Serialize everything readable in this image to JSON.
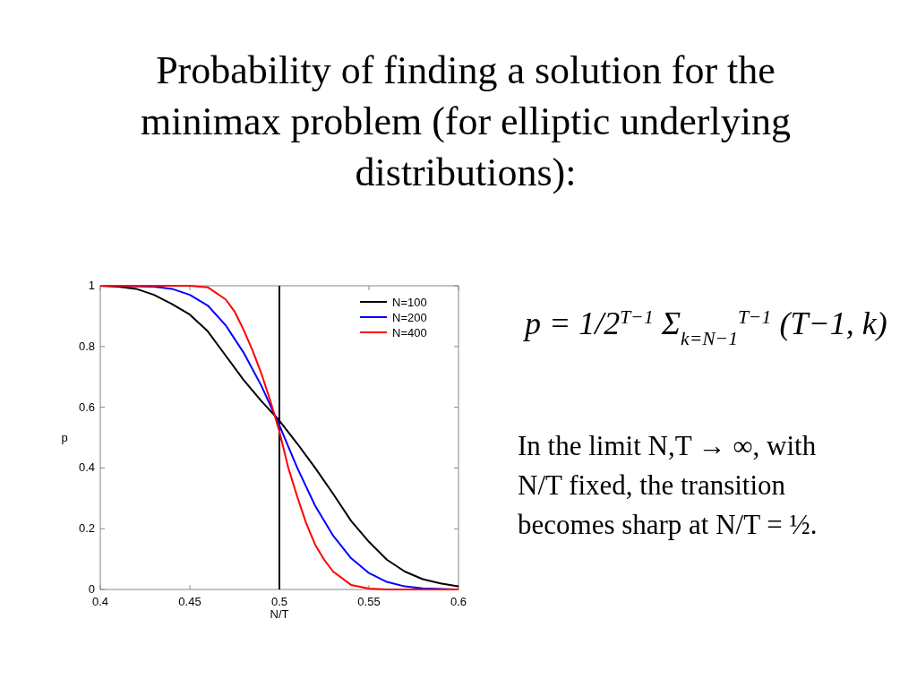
{
  "chart_data": {
    "type": "line",
    "title": "Probability of finding a solution for the minimax problem (for elliptic underlying distributions):",
    "xlabel": "N/T",
    "ylabel": "p",
    "series": [
      {
        "name": "N=100",
        "color": "#000000",
        "x": [
          0.4,
          0.41,
          0.42,
          0.43,
          0.44,
          0.45,
          0.46,
          0.47,
          0.48,
          0.49,
          0.5,
          0.51,
          0.52,
          0.53,
          0.54,
          0.55,
          0.56,
          0.57,
          0.58,
          0.59,
          0.6
        ],
        "values": [
          1.0,
          0.997,
          0.99,
          0.97,
          0.94,
          0.905,
          0.85,
          0.77,
          0.69,
          0.62,
          0.556,
          0.48,
          0.4,
          0.315,
          0.226,
          0.157,
          0.098,
          0.059,
          0.034,
          0.02,
          0.01
        ]
      },
      {
        "name": "N=200",
        "color": "#0000ff",
        "x": [
          0.4,
          0.43,
          0.44,
          0.45,
          0.46,
          0.47,
          0.48,
          0.49,
          0.5,
          0.51,
          0.52,
          0.53,
          0.54,
          0.55,
          0.56,
          0.57,
          0.58,
          0.6
        ],
        "values": [
          1.0,
          0.997,
          0.99,
          0.97,
          0.935,
          0.87,
          0.78,
          0.67,
          0.54,
          0.4,
          0.275,
          0.177,
          0.103,
          0.054,
          0.025,
          0.01,
          0.004,
          0.0
        ]
      },
      {
        "name": "N=400",
        "color": "#ff0000",
        "x": [
          0.4,
          0.45,
          0.46,
          0.47,
          0.475,
          0.48,
          0.485,
          0.49,
          0.495,
          0.5,
          0.505,
          0.51,
          0.515,
          0.52,
          0.525,
          0.53,
          0.54,
          0.55,
          0.56,
          0.6
        ],
        "values": [
          1.0,
          1.0,
          0.995,
          0.955,
          0.915,
          0.855,
          0.787,
          0.71,
          0.62,
          0.52,
          0.4,
          0.305,
          0.217,
          0.147,
          0.098,
          0.059,
          0.015,
          0.003,
          0.0,
          0.0
        ]
      }
    ],
    "xlim": [
      0.4,
      0.6
    ],
    "xticks": [
      0.4,
      0.45,
      0.5,
      0.55,
      0.6
    ],
    "ylim": [
      0,
      1
    ],
    "yticks": [
      0,
      0.2,
      0.4,
      0.6,
      0.8,
      1
    ],
    "ref_lines": [
      {
        "axis": "x",
        "value": 0.5,
        "color": "#000000"
      }
    ],
    "legend": "top right",
    "grid": false,
    "annotations": [
      "p = 1/2$^{T−1}$ Σ$_{k=N−1}$$^{T−1}$ (T−1, k)",
      "In the limit N,T → ∞, with N/T fixed, the transition becomes sharp at N/T = ½."
    ]
  }
}
